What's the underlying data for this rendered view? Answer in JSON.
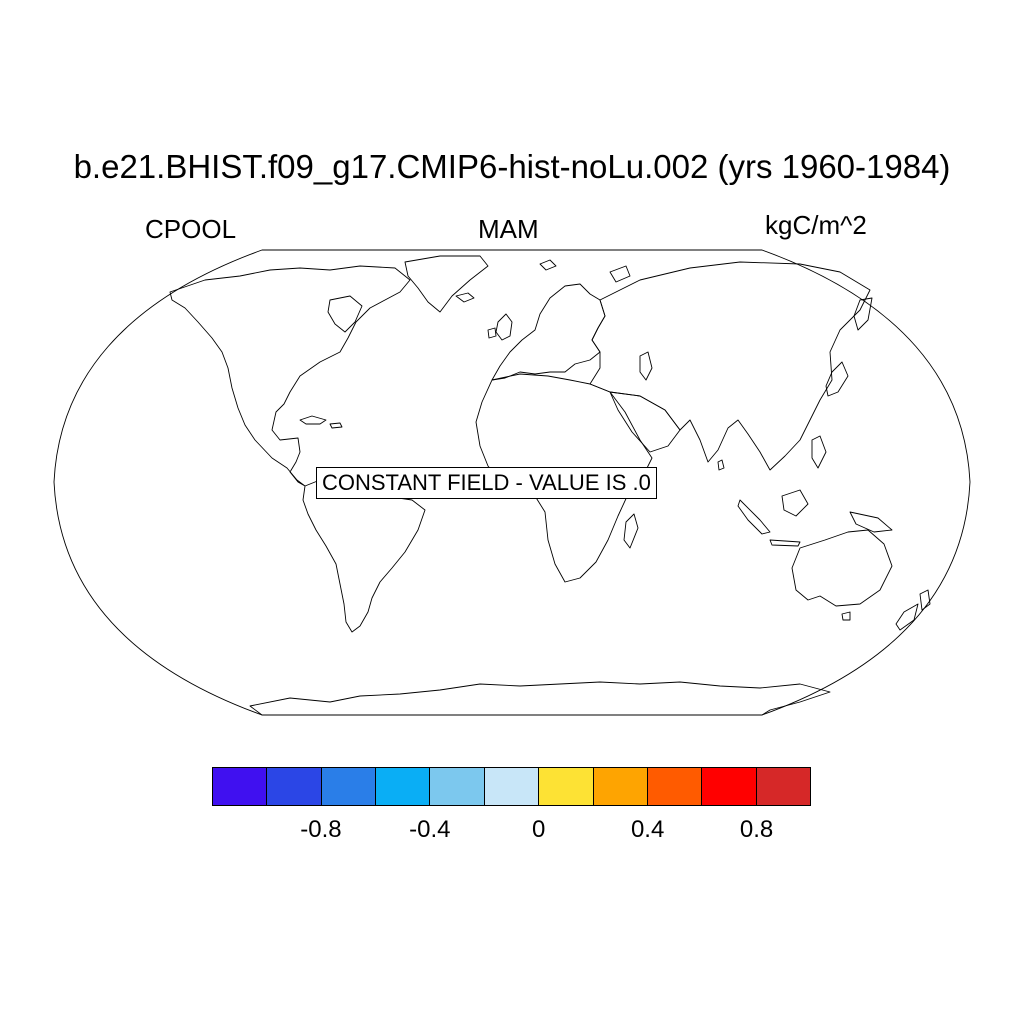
{
  "title": "b.e21.BHIST.f09_g17.CMIP6-hist-noLu.002 (yrs 1960-1984)",
  "left_label": "CPOOL",
  "center_label": "MAM",
  "right_label": "kgC/m^2",
  "message": "CONSTANT FIELD - VALUE IS .0",
  "colorbar": {
    "colors": [
      "#4010f0",
      "#2b46e6",
      "#2a7ee8",
      "#0aaef5",
      "#7cc8ee",
      "#c8e6f8",
      "#fde234",
      "#fea401",
      "#ff5b00",
      "#ff0000",
      "#d62828"
    ],
    "labels": [
      "-0.8",
      "-0.4",
      "0",
      "0.4",
      "0.8"
    ]
  }
}
